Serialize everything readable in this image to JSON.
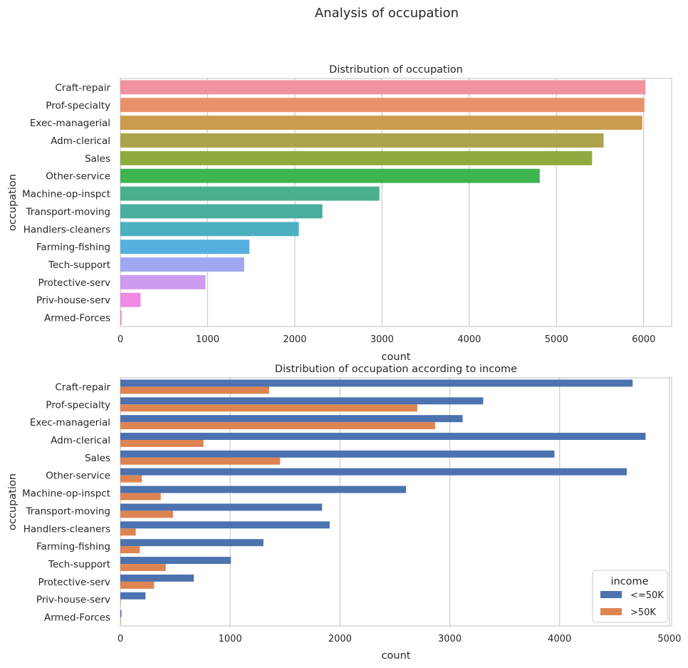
{
  "figure_title": "Analysis of occupation",
  "chart_data": [
    {
      "type": "bar",
      "orientation": "horizontal",
      "title": "Distribution of occupation",
      "xlabel": "count",
      "ylabel": "occupation",
      "categories": [
        "Craft-repair",
        "Prof-specialty",
        "Exec-managerial",
        "Adm-clerical",
        "Sales",
        "Other-service",
        "Machine-op-inspct",
        "Transport-moving",
        "Handlers-cleaners",
        "Farming-fishing",
        "Tech-support",
        "Protective-serv",
        "Priv-house-serv",
        "Armed-Forces"
      ],
      "values": [
        6020,
        6008,
        5983,
        5540,
        5408,
        4808,
        2970,
        2316,
        2046,
        1480,
        1420,
        976,
        232,
        14
      ],
      "colors": [
        "#f0929f",
        "#e9926a",
        "#cb9b4c",
        "#aca24b",
        "#8faa3f",
        "#3eb551",
        "#4aaf8d",
        "#49ad9f",
        "#4cb0c1",
        "#55b0e0",
        "#9ea7f0",
        "#cd9aef",
        "#f08be4",
        "#f08bc0"
      ],
      "xlim": [
        0,
        6320
      ],
      "xticks": [
        0,
        1000,
        2000,
        3000,
        4000,
        5000,
        6000
      ],
      "grid": "vertical"
    },
    {
      "type": "bar",
      "orientation": "horizontal",
      "title": "Distribution of occupation according to income",
      "xlabel": "count",
      "ylabel": "occupation",
      "categories": [
        "Craft-repair",
        "Prof-specialty",
        "Exec-managerial",
        "Adm-clerical",
        "Sales",
        "Other-service",
        "Machine-op-inspct",
        "Transport-moving",
        "Handlers-cleaners",
        "Farming-fishing",
        "Tech-support",
        "Protective-serv",
        "Priv-house-serv",
        "Armed-Forces"
      ],
      "series": [
        {
          "name": "<=50K",
          "color": "#4c72b0",
          "values": [
            4665,
            3304,
            3117,
            4783,
            3953,
            4612,
            2602,
            1837,
            1906,
            1303,
            1007,
            669,
            229,
            10
          ]
        },
        {
          "name": ">50K",
          "color": "#dd8452",
          "values": [
            1355,
            2704,
            2866,
            757,
            1455,
            196,
            368,
            479,
            140,
            177,
            413,
            307,
            3,
            4
          ]
        }
      ],
      "xlim": [
        0,
        5020
      ],
      "xticks": [
        0,
        1000,
        2000,
        3000,
        4000,
        5000
      ],
      "grid": "vertical",
      "legend": {
        "title": "income",
        "position": "lower-right"
      }
    }
  ]
}
